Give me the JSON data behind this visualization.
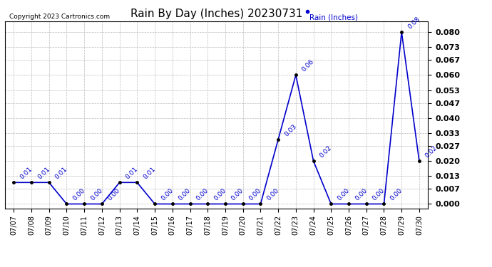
{
  "title": "Rain By Day (Inches) 20230731",
  "copyright": "Copyright 2023 Cartronics.com",
  "legend_label": "Rain (Inches)",
  "dates": [
    "07/07",
    "07/08",
    "07/09",
    "07/10",
    "07/11",
    "07/12",
    "07/13",
    "07/14",
    "07/15",
    "07/16",
    "07/17",
    "07/18",
    "07/19",
    "07/20",
    "07/21",
    "07/22",
    "07/23",
    "07/24",
    "07/25",
    "07/26",
    "07/27",
    "07/28",
    "07/29",
    "07/30"
  ],
  "values": [
    0.01,
    0.01,
    0.01,
    0.0,
    0.0,
    0.0,
    0.01,
    0.01,
    0.0,
    0.0,
    0.0,
    0.0,
    0.0,
    0.0,
    0.0,
    0.03,
    0.06,
    0.02,
    0.0,
    0.0,
    0.0,
    0.0,
    0.08,
    0.02
  ],
  "line_color": "#0000cc",
  "marker_color": "black",
  "bg_color": "#ffffff",
  "grid_color": "#bbbbbb",
  "title_color": "#000000",
  "label_color": "#0000cc",
  "ylabel_ticks": [
    0.0,
    0.007,
    0.013,
    0.02,
    0.027,
    0.033,
    0.04,
    0.047,
    0.053,
    0.06,
    0.067,
    0.073,
    0.08
  ],
  "ylim": [
    -0.002,
    0.085
  ]
}
